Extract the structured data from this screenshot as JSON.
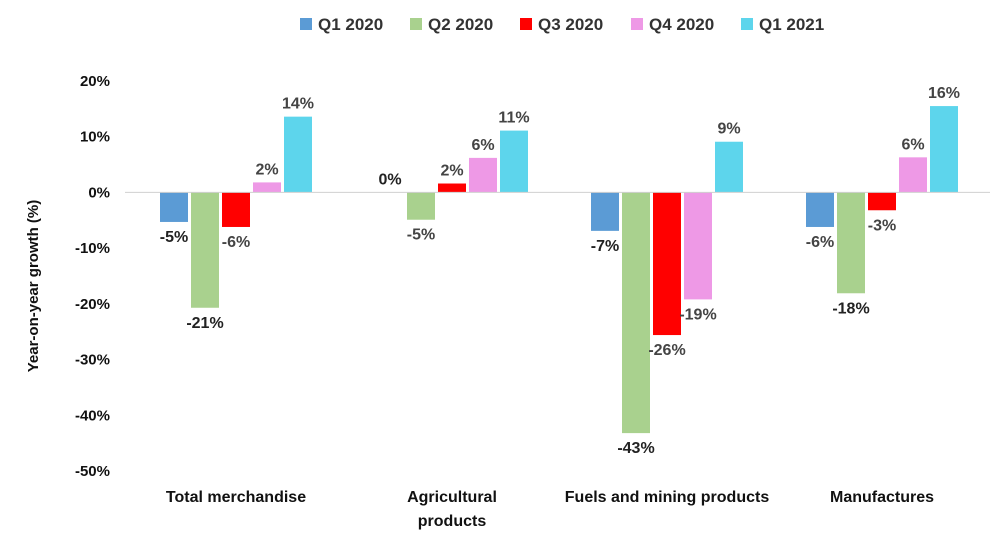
{
  "chart_data": {
    "type": "bar",
    "title": "",
    "xlabel": "",
    "ylabel": "Year-on-year growth (%)",
    "ylim": [
      -50,
      20
    ],
    "yticks": [
      20,
      10,
      0,
      -10,
      -20,
      -30,
      -40,
      -50
    ],
    "ytick_labels": [
      "20%",
      "10%",
      "0%",
      "-10%",
      "-20%",
      "-30%",
      "-40%",
      "-50%"
    ],
    "grid": false,
    "legend_position": "top",
    "categories": [
      [
        "Total merchandise"
      ],
      [
        "Agricultural",
        "products"
      ],
      [
        "Fuels and mining products"
      ],
      [
        "Manufactures"
      ]
    ],
    "series": [
      {
        "name": "Q1 2020",
        "color": "#5B9BD5",
        "values": [
          -5.3,
          0,
          -6.9,
          -6.2
        ],
        "labels": [
          "-5%",
          "0%",
          "-7%",
          "-6%"
        ],
        "label_colors": [
          "#222222",
          "#222222",
          "#222222",
          "#444444"
        ]
      },
      {
        "name": "Q2 2020",
        "color": "#A9D18E",
        "values": [
          -20.7,
          -4.9,
          -43.2,
          -18.1
        ],
        "labels": [
          "-21%",
          "-5%",
          "-43%",
          "-18%"
        ],
        "label_colors": [
          "#222222",
          "#444444",
          "#222222",
          "#222222"
        ]
      },
      {
        "name": "Q3 2020",
        "color": "#FF0000",
        "values": [
          -6.2,
          1.6,
          -25.6,
          -3.2
        ],
        "labels": [
          "-6%",
          "2%",
          "-26%",
          "-3%"
        ],
        "label_colors": [
          "#444444",
          "#444444",
          "#444444",
          "#444444"
        ]
      },
      {
        "name": "Q4 2020",
        "color": "#EE99E6",
        "values": [
          1.8,
          6.2,
          -19.2,
          6.3
        ],
        "labels": [
          "2%",
          "6%",
          "-19%",
          "6%"
        ],
        "label_colors": [
          "#444444",
          "#444444",
          "#444444",
          "#444444"
        ]
      },
      {
        "name": "Q1 2021",
        "color": "#5DD5EC",
        "values": [
          13.6,
          11.1,
          9.1,
          15.5
        ],
        "labels": [
          "14%",
          "11%",
          "9%",
          "16%"
        ],
        "label_colors": [
          "#444444",
          "#444444",
          "#444444",
          "#444444"
        ]
      }
    ]
  }
}
